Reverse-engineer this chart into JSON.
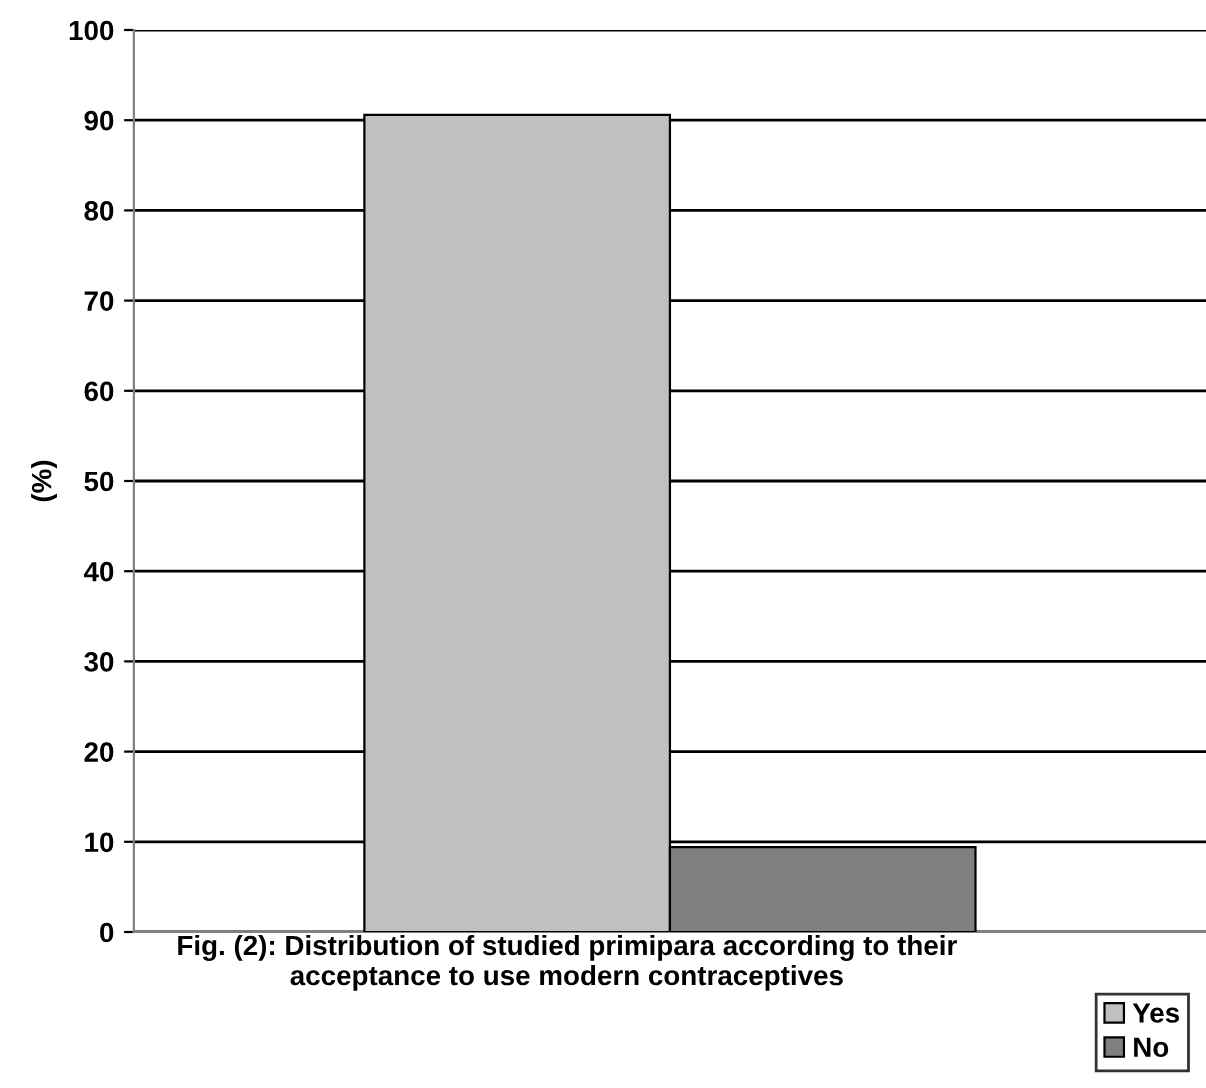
{
  "chart_data": {
    "type": "bar",
    "title": "Fig. (2): Distribution of studied primipara according to their\nacceptance to use modern contraceptives",
    "ylabel": "(%)",
    "categories": [
      null
    ],
    "series": [
      {
        "name": "Yes",
        "color": "#c0c0c0",
        "values": [
          90.6
        ]
      },
      {
        "name": "No",
        "color": "#808080",
        "values": [
          9.4
        ]
      }
    ],
    "ylim": [
      0,
      100
    ],
    "yticks": [
      0,
      10,
      20,
      30,
      40,
      50,
      60,
      70,
      80,
      90,
      100
    ],
    "grid": "y",
    "legend": "bottom right"
  }
}
